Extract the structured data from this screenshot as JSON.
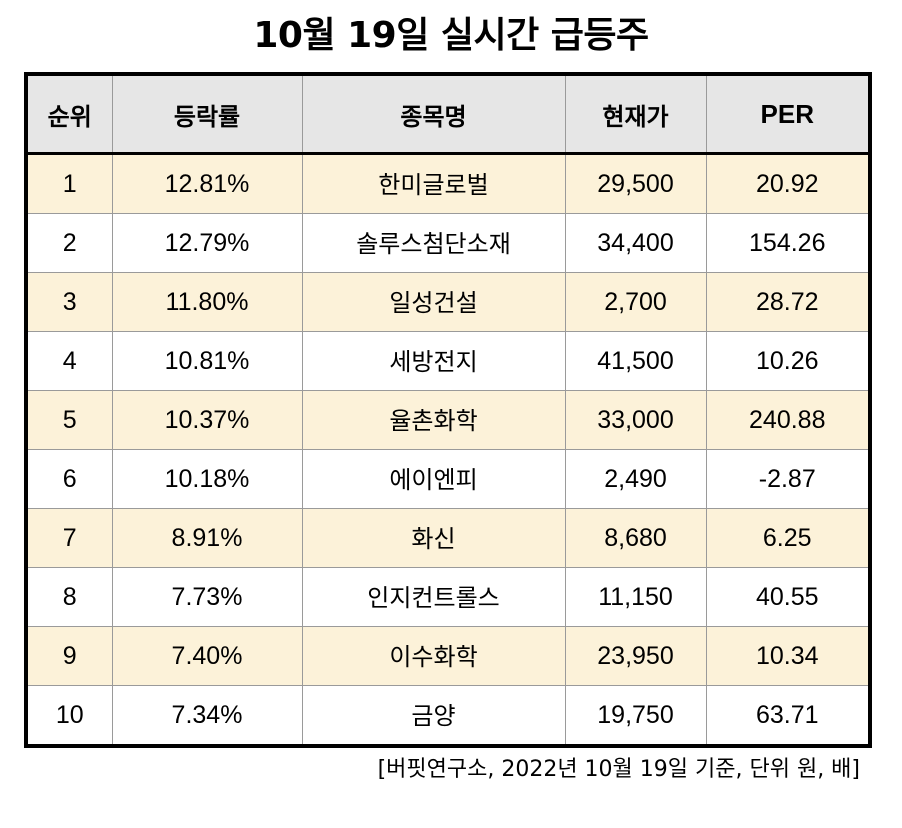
{
  "title": "10월 19일 실시간 급등주",
  "table": {
    "headers": {
      "rank": "순위",
      "change": "등락률",
      "name": "종목명",
      "price": "현재가",
      "per": "PER"
    },
    "rows": [
      {
        "rank": "1",
        "change": "12.81%",
        "name": "한미글로벌",
        "price": "29,500",
        "per": "20.92"
      },
      {
        "rank": "2",
        "change": "12.79%",
        "name": "솔루스첨단소재",
        "price": "34,400",
        "per": "154.26"
      },
      {
        "rank": "3",
        "change": "11.80%",
        "name": "일성건설",
        "price": "2,700",
        "per": "28.72"
      },
      {
        "rank": "4",
        "change": "10.81%",
        "name": "세방전지",
        "price": "41,500",
        "per": "10.26"
      },
      {
        "rank": "5",
        "change": "10.37%",
        "name": "율촌화학",
        "price": "33,000",
        "per": "240.88"
      },
      {
        "rank": "6",
        "change": "10.18%",
        "name": "에이엔피",
        "price": "2,490",
        "per": "-2.87"
      },
      {
        "rank": "7",
        "change": "8.91%",
        "name": "화신",
        "price": "8,680",
        "per": "6.25"
      },
      {
        "rank": "8",
        "change": "7.73%",
        "name": "인지컨트롤스",
        "price": "11,150",
        "per": "40.55"
      },
      {
        "rank": "9",
        "change": "7.40%",
        "name": "이수화학",
        "price": "23,950",
        "per": "10.34"
      },
      {
        "rank": "10",
        "change": "7.34%",
        "name": "금양",
        "price": "19,750",
        "per": "63.71"
      }
    ]
  },
  "source_note": "[버핏연구소, 2022년 10월 19일 기준, 단위 원, 배]",
  "colors": {
    "header_background": "#e6e6e6",
    "highlight_row": "#fcf2d9",
    "plain_row": "#ffffff"
  }
}
